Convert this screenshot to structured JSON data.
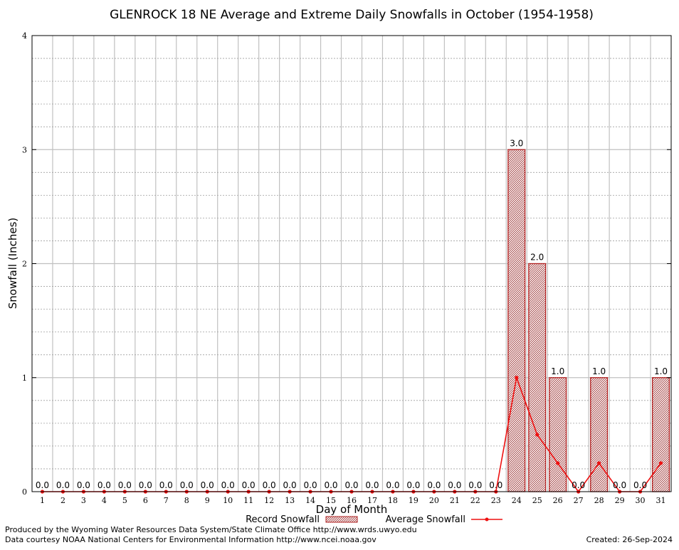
{
  "chart_data": {
    "type": "bar",
    "title": "GLENROCK 18 NE Average and Extreme Daily Snowfalls in October (1954-1958)",
    "xlabel": "Day of Month",
    "ylabel": "Snowfall (Inches)",
    "ylim": [
      0,
      4
    ],
    "yticks": [
      "0",
      "1",
      "2",
      "3",
      "4"
    ],
    "grid": true,
    "legend_position": "bottom",
    "categories": [
      "1",
      "2",
      "3",
      "4",
      "5",
      "6",
      "7",
      "8",
      "9",
      "10",
      "11",
      "12",
      "13",
      "14",
      "15",
      "16",
      "17",
      "18",
      "19",
      "20",
      "21",
      "22",
      "23",
      "24",
      "25",
      "26",
      "27",
      "28",
      "29",
      "30",
      "31"
    ],
    "series": [
      {
        "name": "Record Snowfall",
        "type": "bar",
        "color": "#b22222",
        "values": [
          0,
          0,
          0,
          0,
          0,
          0,
          0,
          0,
          0,
          0,
          0,
          0,
          0,
          0,
          0,
          0,
          0,
          0,
          0,
          0,
          0,
          0,
          0,
          3.0,
          2.0,
          1.0,
          0,
          1.0,
          0,
          0,
          1.0
        ],
        "labels": [
          "0.0",
          "0.0",
          "0.0",
          "0.0",
          "0.0",
          "0.0",
          "0.0",
          "0.0",
          "0.0",
          "0.0",
          "0.0",
          "0.0",
          "0.0",
          "0.0",
          "0.0",
          "0.0",
          "0.0",
          "0.0",
          "0.0",
          "0.0",
          "0.0",
          "0.0",
          "0.0",
          "3.0",
          "2.0",
          "1.0",
          "0.0",
          "1.0",
          "0.0",
          "0.0",
          "1.0"
        ]
      },
      {
        "name": "Average Snowfall",
        "type": "line",
        "color": "#ee1111",
        "values": [
          0,
          0,
          0,
          0,
          0,
          0,
          0,
          0,
          0,
          0,
          0,
          0,
          0,
          0,
          0,
          0,
          0,
          0,
          0,
          0,
          0,
          0,
          0,
          1.0,
          0.5,
          0.25,
          0,
          0.25,
          0,
          0,
          0.25
        ]
      }
    ]
  },
  "footer": {
    "produced_by": "Produced by the Wyoming Water Resources Data System/State Climate Office http://www.wrds.uwyo.edu",
    "courtesy": "Data courtesy NOAA National Centers for Environmental Information http://www.ncei.noaa.gov",
    "created": "Created:  26-Sep-2024"
  }
}
